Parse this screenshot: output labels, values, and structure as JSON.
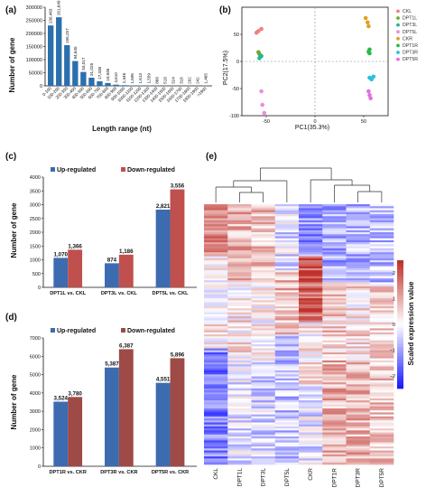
{
  "panels": {
    "a": "(a)",
    "b": "(b)",
    "c": "(c)",
    "d": "(d)",
    "e": "(e)"
  },
  "chart_data": [
    {
      "type": "bar",
      "panel": "(a)",
      "xlabel": "Length range (nt)",
      "ylabel": "Number of gene",
      "ylim": [
        0,
        300000
      ],
      "yticks": [
        "0",
        "50000",
        "100000",
        "150000",
        "200000",
        "250000",
        "300000"
      ],
      "categories": [
        "0-100",
        "100-200",
        "200-300",
        "300-400",
        "400-500",
        "500-600",
        "600-700",
        "700-800",
        "800-900",
        "900-1000",
        "1000-1100",
        "1100-1200",
        "1200-1300",
        "1300-1400",
        "1400-1500",
        "1500-1600",
        "1600-1700",
        "1700-1800",
        "1800-1900",
        ">1900"
      ],
      "values": [
        230463,
        261649,
        155257,
        94645,
        53017,
        31028,
        17338,
        10946,
        4610,
        2346,
        1695,
        1613,
        1559,
        866,
        518,
        324,
        318,
        292,
        242,
        1465
      ],
      "value_labels": [
        "230,463",
        "261,649",
        "155,257",
        "94,645",
        "53,017",
        "31,028",
        "17,338",
        "10,946",
        "4,610",
        "2,346",
        "1,695",
        "1,613",
        "1,559",
        "866",
        "518",
        "324",
        "318",
        "292",
        "242",
        "1,465"
      ],
      "color": "#2b6fad"
    },
    {
      "type": "scatter",
      "panel": "(b)",
      "xlabel": "PC1(35.3%)",
      "ylabel": "PC2(17.5%)",
      "xlim": [
        -75,
        75
      ],
      "ylim": [
        -100,
        100
      ],
      "xticks": [
        -50,
        0,
        50
      ],
      "yticks": [
        -100,
        -50,
        0,
        50
      ],
      "series": [
        {
          "name": "CKL",
          "color": "#f08080",
          "points": [
            [
              -60,
              53
            ],
            [
              -58,
              56
            ],
            [
              -55,
              60
            ]
          ]
        },
        {
          "name": "DPT1L",
          "color": "#6aaa2b",
          "points": [
            [
              -58,
              17
            ],
            [
              -57,
              14
            ]
          ]
        },
        {
          "name": "DPT3L",
          "color": "#22b59a",
          "points": [
            [
              -57,
              6
            ],
            [
              -56,
              9
            ],
            [
              -55,
              10
            ]
          ]
        },
        {
          "name": "DPT5L",
          "color": "#e88ee0",
          "points": [
            [
              -55,
              -55
            ],
            [
              -54,
              -80
            ],
            [
              -52,
              -95
            ]
          ]
        },
        {
          "name": "CKR",
          "color": "#e0a020",
          "points": [
            [
              52,
              80
            ],
            [
              54,
              72
            ],
            [
              55,
              65
            ]
          ]
        },
        {
          "name": "DPT1R",
          "color": "#2ab94a",
          "points": [
            [
              55,
              18
            ],
            [
              56,
              22
            ],
            [
              56,
              15
            ]
          ]
        },
        {
          "name": "DPT3R",
          "color": "#28c0e0",
          "points": [
            [
              56,
              -30
            ],
            [
              58,
              -33
            ],
            [
              60,
              -28
            ]
          ]
        },
        {
          "name": "DPT5R",
          "color": "#e070e0",
          "points": [
            [
              55,
              -55
            ],
            [
              56,
              -62
            ],
            [
              57,
              -68
            ]
          ]
        }
      ]
    },
    {
      "type": "bar",
      "panel": "(c)",
      "ylabel": "Number of gene",
      "ylim": [
        0,
        4000
      ],
      "yticks": [
        "0",
        "500",
        "1000",
        "1500",
        "2000",
        "2500",
        "3000",
        "3500",
        "4000"
      ],
      "categories": [
        "DPT1L vs. CKL",
        "DPT3L vs. CKL",
        "DPT5L vs. CKL"
      ],
      "series": [
        {
          "name": "Up-regulated",
          "color": "#3d6bb0",
          "values": [
            1070,
            874,
            2821
          ],
          "labels": [
            "1,070",
            "874",
            "2,821"
          ]
        },
        {
          "name": "Down-regulated",
          "color": "#c0504d",
          "values": [
            1366,
            1186,
            3556
          ],
          "labels": [
            "1,366",
            "1,186",
            "3,556"
          ]
        }
      ]
    },
    {
      "type": "bar",
      "panel": "(d)",
      "ylabel": "Number of gene",
      "ylim": [
        0,
        7000
      ],
      "yticks": [
        "0",
        "1000",
        "2000",
        "3000",
        "4000",
        "5000",
        "6000",
        "7000"
      ],
      "categories": [
        "DPT1R vs. CKR",
        "DPT3R vs. CKR",
        "DPT5R vs. CKR"
      ],
      "series": [
        {
          "name": "Up-regulated",
          "color": "#3d6bb0",
          "values": [
            3524,
            5387,
            4551
          ],
          "labels": [
            "3,524",
            "5,387",
            "4,551"
          ]
        },
        {
          "name": "Down-regulated",
          "color": "#9e4a47",
          "values": [
            3780,
            6387,
            5896
          ],
          "labels": [
            "3,780",
            "6,387",
            "5,896"
          ]
        }
      ]
    },
    {
      "type": "heatmap",
      "panel": "(e)",
      "columns": [
        "CKL",
        "DPT1L",
        "DPT3L",
        "DPT5L",
        "CKR",
        "DPT1R",
        "DPT3R",
        "DPT5R"
      ],
      "colorbar_label": "Scaled expression value",
      "colorbar_ticks": [
        "2",
        "1",
        "0",
        "−1",
        "−2"
      ],
      "colorbar_range": [
        -2.5,
        2.5
      ],
      "colors": {
        "low": "#1a1aff",
        "mid": "#ffffff",
        "high": "#c0302a"
      }
    }
  ]
}
